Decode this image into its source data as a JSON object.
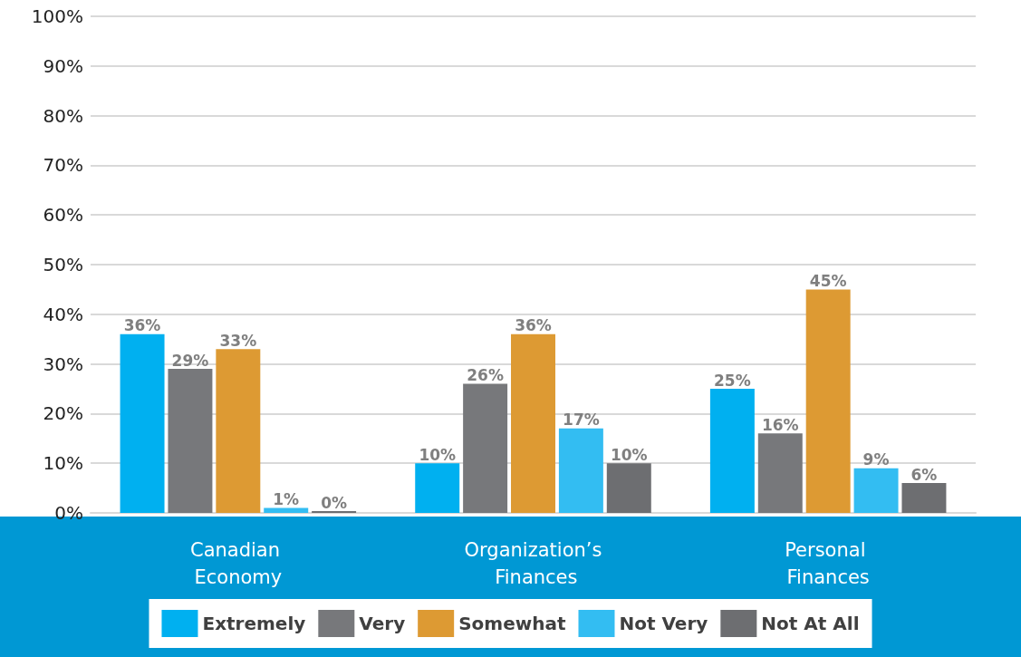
{
  "chart_data": {
    "type": "bar",
    "categories": [
      "Canadian Economy",
      "Organization’s Finances",
      "Personal Finances"
    ],
    "series": [
      {
        "name": "Extremely",
        "color": "#00b0f0",
        "values": [
          36,
          10,
          25
        ],
        "value_labels": [
          "36%",
          "10%",
          "25%"
        ]
      },
      {
        "name": "Very",
        "color": "#77787b",
        "values": [
          29,
          26,
          16
        ],
        "value_labels": [
          "29%",
          "26%",
          "16%"
        ]
      },
      {
        "name": "Somewhat",
        "color": "#dd9a33",
        "values": [
          33,
          36,
          45
        ],
        "value_labels": [
          "33%",
          "36%",
          "45%"
        ]
      },
      {
        "name": "Not Very",
        "color": "#33bdf2",
        "values": [
          1,
          17,
          9
        ],
        "value_labels": [
          "1%",
          "17%",
          "9%"
        ]
      },
      {
        "name": "Not At All",
        "color": "#6d6e71",
        "values": [
          0,
          10,
          6
        ],
        "value_labels": [
          "0%",
          "10%",
          "6%"
        ]
      }
    ],
    "ylim": [
      0,
      100
    ],
    "yticks": [
      {
        "value": 0,
        "label": "0%"
      },
      {
        "value": 10,
        "label": "10%"
      },
      {
        "value": 20,
        "label": "20%"
      },
      {
        "value": 30,
        "label": "30%"
      },
      {
        "value": 40,
        "label": "40%"
      },
      {
        "value": 50,
        "label": "50%"
      },
      {
        "value": 60,
        "label": "60%"
      },
      {
        "value": 70,
        "label": "70%"
      },
      {
        "value": 80,
        "label": "80%"
      },
      {
        "value": 90,
        "label": "90%"
      },
      {
        "value": 100,
        "label": "100%"
      }
    ],
    "grid": "y",
    "legend": "bottom"
  }
}
